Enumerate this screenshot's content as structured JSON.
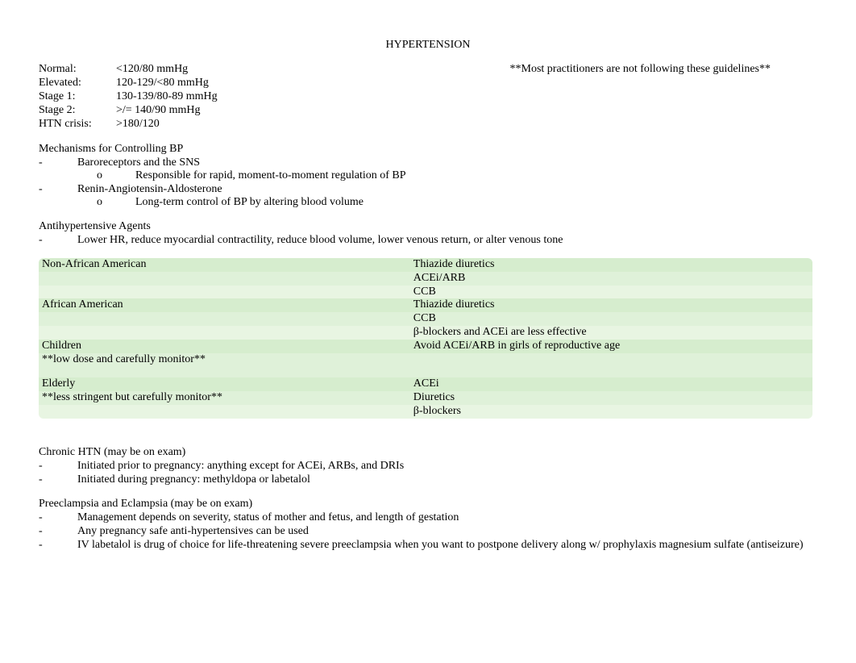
{
  "title": "HYPERTENSION",
  "note": "**Most practitioners are not following these guidelines**",
  "bp_categories": [
    {
      "label": "Normal:",
      "value": "<120/80 mmHg"
    },
    {
      "label": "Elevated:",
      "value": "120-129/<80 mmHg"
    },
    {
      "label": "Stage 1:",
      "value": "130-139/80-89 mmHg"
    },
    {
      "label": "Stage 2:",
      "value": ">/= 140/90 mmHg"
    },
    {
      "label": "HTN crisis:",
      "value": ">180/120"
    }
  ],
  "mechanisms": {
    "heading": "Mechanisms for Controlling BP",
    "items": [
      {
        "text": "Baroreceptors and the SNS",
        "sub": [
          "Responsible for rapid, moment-to-moment regulation of BP"
        ]
      },
      {
        "text": "Renin-Angiotensin-Aldosterone",
        "sub": [
          "Long-term control of BP by altering blood volume"
        ]
      }
    ]
  },
  "agents": {
    "heading": "Antihypertensive Agents",
    "items": [
      "Lower HR, reduce myocardial contractility, reduce blood volume, lower venous return, or alter venous tone"
    ]
  },
  "drug_table": {
    "background_colors": [
      "#d6edce",
      "#dff1d9",
      "#e8f5e2"
    ],
    "groups": [
      {
        "left": [
          "Non-African American"
        ],
        "right": [
          "Thiazide diuretics",
          "ACEi/ARB",
          "CCB"
        ]
      },
      {
        "left": [
          "African American"
        ],
        "right": [
          "Thiazide diuretics",
          "CCB",
          "β-blockers and ACEi are less effective"
        ]
      },
      {
        "left": [
          "Children",
          "**low dose and carefully monitor**"
        ],
        "right": [
          "Avoid ACEi/ARB in girls of reproductive age",
          ""
        ]
      },
      {
        "left": [
          "Elderly",
          "**less stringent but carefully monitor**"
        ],
        "right": [
          "ACEi",
          "Diuretics",
          "β-blockers"
        ]
      }
    ]
  },
  "chronic": {
    "heading": "Chronic HTN (may be on exam)",
    "items": [
      "Initiated prior to pregnancy: anything except for ACEi, ARBs, and DRIs",
      "Initiated during pregnancy: methyldopa or labetalol"
    ]
  },
  "preeclampsia": {
    "heading": "Preeclampsia and Eclampsia (may be on exam)",
    "items": [
      "Management depends on severity, status of mother and fetus, and length of gestation",
      "Any pregnancy safe anti-hypertensives can be used",
      "IV labetalol is drug of choice for life-threatening severe preeclampsia when you want to postpone delivery along w/ prophylaxis magnesium sulfate (antiseizure)"
    ]
  }
}
